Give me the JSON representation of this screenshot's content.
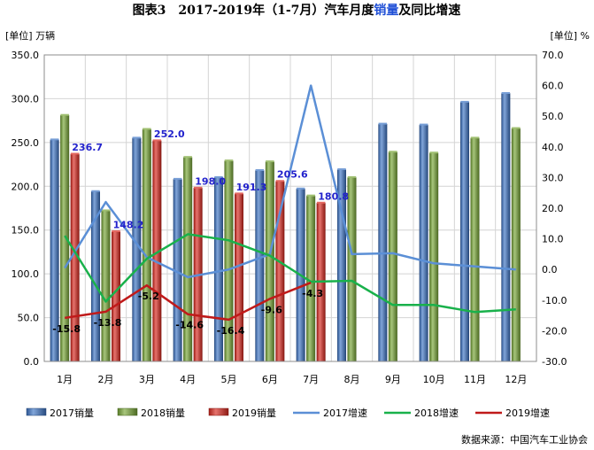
{
  "title": {
    "prefix": "图表3",
    "part1": "2017-2019年（1-7月）汽车月度",
    "accent": "销量",
    "part2": "及同比增速"
  },
  "left_unit": "[单位] 万辆",
  "right_unit": "[单位] %",
  "source": "数据来源：中国汽车工业协会",
  "chart_data": {
    "type": "bar",
    "categories": [
      "1月",
      "2月",
      "3月",
      "4月",
      "5月",
      "6月",
      "7月",
      "8月",
      "9月",
      "10月",
      "11月",
      "12月"
    ],
    "y_left": {
      "min": 0,
      "max": 350,
      "step": 50,
      "ticks": [
        "0.0",
        "50.0",
        "100.0",
        "150.0",
        "200.0",
        "250.0",
        "300.0",
        "350.0"
      ]
    },
    "y_right": {
      "min": -30,
      "max": 70,
      "step": 10,
      "ticks": [
        "-30.0",
        "-20.0",
        "-10.0",
        "0.0",
        "10.0",
        "20.0",
        "30.0",
        "40.0",
        "50.0",
        "60.0",
        "70.0"
      ]
    },
    "bar_series": [
      {
        "name": "2017销量",
        "color": "#3d74c4",
        "values": [
          253,
          194,
          255,
          208,
          210,
          218,
          197,
          219,
          271,
          270,
          296,
          306
        ]
      },
      {
        "name": "2018销量",
        "color": "#77a536",
        "values": [
          281,
          172,
          265,
          233,
          229,
          228,
          189,
          210,
          239,
          238,
          255,
          266
        ]
      },
      {
        "name": "2019销量",
        "color": "#d9281f",
        "values": [
          236.7,
          148.2,
          252.0,
          198.0,
          191.3,
          205.6,
          180.8,
          null,
          null,
          null,
          null,
          null
        ]
      }
    ],
    "line_series": [
      {
        "name": "2017增速",
        "color": "#5b8fd6",
        "values": [
          0.5,
          22,
          4,
          -2.5,
          0,
          5,
          60,
          5,
          5.3,
          2,
          1,
          0
        ]
      },
      {
        "name": "2018增速",
        "color": "#19b14b",
        "values": [
          11,
          -10.5,
          3.5,
          11.5,
          9.5,
          4.5,
          -4,
          -3.7,
          -11.6,
          -11.6,
          -13.9,
          -13
        ]
      },
      {
        "name": "2019增速",
        "color": "#c01a1a",
        "values": [
          -15.8,
          -13.8,
          -5.2,
          -14.6,
          -16.4,
          -9.6,
          -4.3,
          null,
          null,
          null,
          null,
          null
        ]
      }
    ],
    "bar_labels": [
      {
        "series": 2,
        "index": 0,
        "text": "236.7"
      },
      {
        "series": 2,
        "index": 1,
        "text": "148.2"
      },
      {
        "series": 2,
        "index": 2,
        "text": "252.0"
      },
      {
        "series": 2,
        "index": 3,
        "text": "198.0"
      },
      {
        "series": 2,
        "index": 4,
        "text": "191.3"
      },
      {
        "series": 2,
        "index": 5,
        "text": "205.6"
      },
      {
        "series": 2,
        "index": 6,
        "text": "180.8"
      }
    ],
    "line_labels": [
      {
        "index": 0,
        "text": "-15.8"
      },
      {
        "index": 1,
        "text": "-13.8"
      },
      {
        "index": 2,
        "text": "-5.2"
      },
      {
        "index": 3,
        "text": "-14.6"
      },
      {
        "index": 4,
        "text": "-16.4"
      },
      {
        "index": 5,
        "text": "-9.6"
      },
      {
        "index": 6,
        "text": "-4.3"
      }
    ],
    "label_color_bar": "#2222cc",
    "label_color_line": "#000000",
    "grid": true,
    "legend_position": "bottom"
  }
}
